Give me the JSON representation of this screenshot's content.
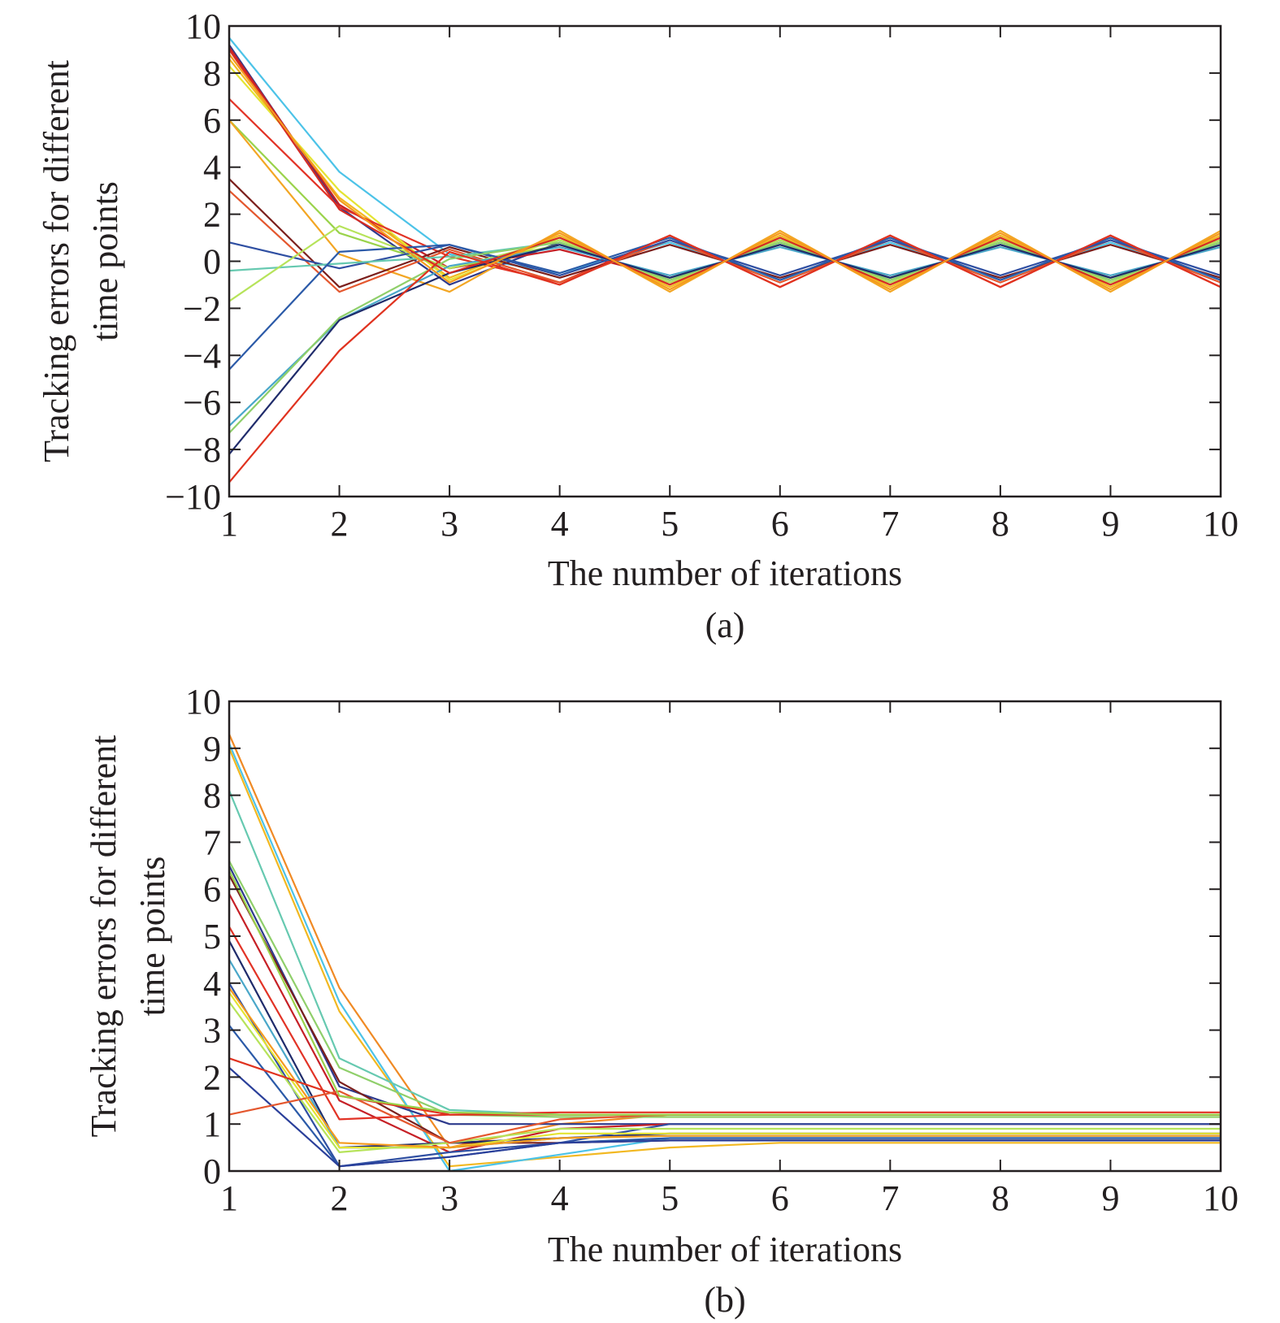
{
  "chart_data": [
    {
      "type": "line",
      "caption": "(a)",
      "xlabel": "The number of iterations",
      "ylabel_lines": [
        "Tracking errors for different",
        "time points"
      ],
      "xlim": [
        1,
        10
      ],
      "ylim": [
        -10,
        10
      ],
      "xticks": [
        "1",
        "2",
        "3",
        "4",
        "5",
        "6",
        "7",
        "8",
        "9",
        "10"
      ],
      "yticks": [
        "10",
        "8",
        "6",
        "4",
        "2",
        "0",
        "−2",
        "−4",
        "−6",
        "−8",
        "−10"
      ],
      "ytick_values": [
        10,
        8,
        6,
        4,
        2,
        0,
        -2,
        -4,
        -6,
        -8,
        -10
      ],
      "x": [
        1,
        2,
        3,
        4,
        5,
        6,
        7,
        8,
        9,
        10
      ],
      "series": [
        {
          "color": "#4cc3e8",
          "values": [
            9.5,
            3.8,
            0.3,
            -0.5,
            0.8,
            -0.8,
            0.8,
            -0.8,
            0.8,
            -0.8
          ]
        },
        {
          "color": "#2d3a8c",
          "values": [
            9.2,
            2.3,
            -1.0,
            0.8,
            -0.9,
            0.9,
            -0.9,
            0.9,
            -0.9,
            0.9
          ]
        },
        {
          "color": "#c62026",
          "values": [
            9.1,
            2.4,
            -0.3,
            0.5,
            -0.7,
            0.7,
            -0.7,
            0.7,
            -0.7,
            0.7
          ]
        },
        {
          "color": "#f2b821",
          "values": [
            8.6,
            2.7,
            -0.7,
            1.1,
            -1.1,
            1.1,
            -1.1,
            1.1,
            -1.1,
            1.1
          ]
        },
        {
          "color": "#e4e432",
          "values": [
            8.3,
            3.0,
            -0.8,
            1.0,
            -1.0,
            1.0,
            -1.0,
            1.0,
            -1.0,
            1.0
          ]
        },
        {
          "color": "#e23326",
          "values": [
            6.9,
            2.3,
            0.2,
            -0.9,
            1.1,
            -1.1,
            1.1,
            -1.1,
            1.1,
            -1.1
          ]
        },
        {
          "color": "#9ad34b",
          "values": [
            6.0,
            1.2,
            -0.3,
            0.7,
            -0.7,
            0.7,
            -0.7,
            0.7,
            -0.7,
            0.7
          ]
        },
        {
          "color": "#f3a623",
          "values": [
            6.0,
            0.3,
            -1.3,
            1.3,
            -1.3,
            1.3,
            -1.3,
            1.3,
            -1.3,
            1.3
          ]
        },
        {
          "color": "#7b1f1c",
          "values": [
            3.5,
            -1.1,
            0.6,
            -0.7,
            0.7,
            -0.7,
            0.7,
            -0.7,
            0.7,
            -0.7
          ]
        },
        {
          "color": "#e4572e",
          "values": [
            3.0,
            -1.3,
            0.5,
            -0.9,
            0.9,
            -0.9,
            0.9,
            -0.9,
            0.9,
            -0.9
          ]
        },
        {
          "color": "#2f4fa2",
          "values": [
            0.8,
            -0.3,
            0.7,
            -0.6,
            0.9,
            -0.6,
            0.9,
            -0.6,
            0.9,
            -0.6
          ]
        },
        {
          "color": "#66c9b0",
          "values": [
            -0.4,
            -0.1,
            0.2,
            0.8,
            -0.8,
            0.8,
            -0.8,
            0.8,
            -0.8,
            0.8
          ]
        },
        {
          "color": "#b6e35a",
          "values": [
            -1.7,
            1.5,
            -0.3,
            0.9,
            -0.9,
            0.9,
            -0.9,
            0.9,
            -0.9,
            0.9
          ]
        },
        {
          "color": "#2b5aa8",
          "values": [
            -4.6,
            0.4,
            0.7,
            -0.5,
            1.0,
            -0.8,
            1.0,
            -0.8,
            1.0,
            -0.8
          ]
        },
        {
          "color": "#4aa7c9",
          "values": [
            -7.0,
            -2.5,
            -0.2,
            0.6,
            -0.6,
            0.6,
            -0.6,
            0.6,
            -0.6,
            0.6
          ]
        },
        {
          "color": "#8fcf6a",
          "values": [
            -7.3,
            -2.4,
            0.1,
            0.8,
            -0.8,
            0.8,
            -0.8,
            0.8,
            -0.8,
            0.8
          ]
        },
        {
          "color": "#1f2b6b",
          "values": [
            -8.2,
            -2.5,
            -0.5,
            0.7,
            -0.7,
            0.7,
            -0.7,
            0.7,
            -0.7,
            0.7
          ]
        },
        {
          "color": "#e0321f",
          "values": [
            -9.4,
            -3.8,
            0.4,
            -1.0,
            1.1,
            -1.1,
            1.1,
            -1.1,
            1.1,
            -1.1
          ]
        },
        {
          "color": "#d62b24",
          "values": [
            9.0,
            2.2,
            -0.5,
            1.0,
            -1.0,
            1.0,
            -1.0,
            1.0,
            -1.0,
            1.0
          ]
        },
        {
          "color": "#f59a1e",
          "values": [
            8.8,
            2.6,
            -0.9,
            1.2,
            -1.2,
            1.2,
            -1.2,
            1.2,
            -1.2,
            1.2
          ]
        }
      ]
    },
    {
      "type": "line",
      "caption": "(b)",
      "xlabel": "The number of iterations",
      "ylabel_lines": [
        "Tracking errors for different",
        "time points"
      ],
      "xlim": [
        1,
        10
      ],
      "ylim": [
        0,
        10
      ],
      "xticks": [
        "1",
        "2",
        "3",
        "4",
        "5",
        "6",
        "7",
        "8",
        "9",
        "10"
      ],
      "yticks": [
        "10",
        "9",
        "8",
        "7",
        "6",
        "5",
        "4",
        "3",
        "2",
        "1",
        "0"
      ],
      "ytick_values": [
        10,
        9,
        8,
        7,
        6,
        5,
        4,
        3,
        2,
        1,
        0
      ],
      "x": [
        1,
        2,
        3,
        4,
        5,
        6,
        7,
        8,
        9,
        10
      ],
      "series": [
        {
          "color": "#f08a24",
          "values": [
            9.3,
            3.9,
            0.5,
            1.0,
            1.2,
            1.2,
            1.2,
            1.2,
            1.2,
            1.2
          ]
        },
        {
          "color": "#f2b821",
          "values": [
            9.0,
            3.4,
            0.1,
            0.3,
            0.5,
            0.6,
            0.6,
            0.6,
            0.6,
            0.6
          ]
        },
        {
          "color": "#4cc3e8",
          "values": [
            9.1,
            3.6,
            0.0,
            0.35,
            0.7,
            0.7,
            0.7,
            0.7,
            0.7,
            0.7
          ]
        },
        {
          "color": "#66c9b0",
          "values": [
            8.1,
            2.4,
            1.3,
            1.2,
            1.2,
            1.2,
            1.2,
            1.2,
            1.2,
            1.2
          ]
        },
        {
          "color": "#8fcf6a",
          "values": [
            6.6,
            2.2,
            1.2,
            1.15,
            1.15,
            1.15,
            1.15,
            1.15,
            1.15,
            1.15
          ]
        },
        {
          "color": "#2d3a8c",
          "values": [
            6.5,
            1.8,
            1.0,
            1.0,
            1.0,
            1.0,
            1.0,
            1.0,
            1.0,
            1.0
          ]
        },
        {
          "color": "#7b1f1c",
          "values": [
            6.3,
            1.9,
            0.6,
            0.6,
            0.65,
            0.65,
            0.65,
            0.65,
            0.65,
            0.65
          ]
        },
        {
          "color": "#c62026",
          "values": [
            5.9,
            1.5,
            0.4,
            0.9,
            1.0,
            1.0,
            1.0,
            1.0,
            1.0,
            1.0
          ]
        },
        {
          "color": "#e23326",
          "values": [
            5.2,
            1.1,
            1.2,
            1.25,
            1.25,
            1.25,
            1.25,
            1.25,
            1.25,
            1.25
          ]
        },
        {
          "color": "#1f2b6b",
          "values": [
            4.9,
            0.5,
            0.6,
            0.7,
            0.8,
            0.8,
            0.8,
            0.8,
            0.8,
            0.8
          ]
        },
        {
          "color": "#4aa7c9",
          "values": [
            4.5,
            0.5,
            0.5,
            0.7,
            0.75,
            0.75,
            0.75,
            0.75,
            0.75,
            0.75
          ]
        },
        {
          "color": "#2f4fa2",
          "values": [
            4.0,
            0.1,
            0.4,
            0.6,
            1.0,
            1.0,
            1.0,
            1.0,
            1.0,
            1.0
          ]
        },
        {
          "color": "#e4e432",
          "values": [
            3.8,
            0.5,
            0.5,
            0.8,
            0.8,
            0.8,
            0.8,
            0.8,
            0.8,
            0.8
          ]
        },
        {
          "color": "#b6e35a",
          "values": [
            3.6,
            0.4,
            0.6,
            0.9,
            0.9,
            0.9,
            0.9,
            0.9,
            0.9,
            0.9
          ]
        },
        {
          "color": "#2b5aa8",
          "values": [
            3.1,
            0.1,
            0.3,
            0.6,
            0.7,
            0.7,
            0.7,
            0.7,
            0.7,
            0.7
          ]
        },
        {
          "color": "#e0321f",
          "values": [
            2.4,
            1.6,
            1.2,
            1.2,
            1.2,
            1.2,
            1.2,
            1.2,
            1.2,
            1.2
          ]
        },
        {
          "color": "#2a3f9a",
          "values": [
            2.2,
            0.1,
            0.3,
            0.6,
            0.65,
            0.65,
            0.65,
            0.65,
            0.65,
            0.65
          ]
        },
        {
          "color": "#e4572e",
          "values": [
            1.2,
            1.7,
            0.6,
            1.1,
            1.2,
            1.2,
            1.2,
            1.2,
            1.2,
            1.2
          ]
        },
        {
          "color": "#9ad34b",
          "values": [
            6.4,
            1.6,
            1.25,
            1.2,
            1.2,
            1.2,
            1.2,
            1.2,
            1.2,
            1.2
          ]
        },
        {
          "color": "#f59a1e",
          "values": [
            3.9,
            0.6,
            0.5,
            0.7,
            0.75,
            0.75,
            0.75,
            0.75,
            0.75,
            0.75
          ]
        }
      ]
    }
  ]
}
